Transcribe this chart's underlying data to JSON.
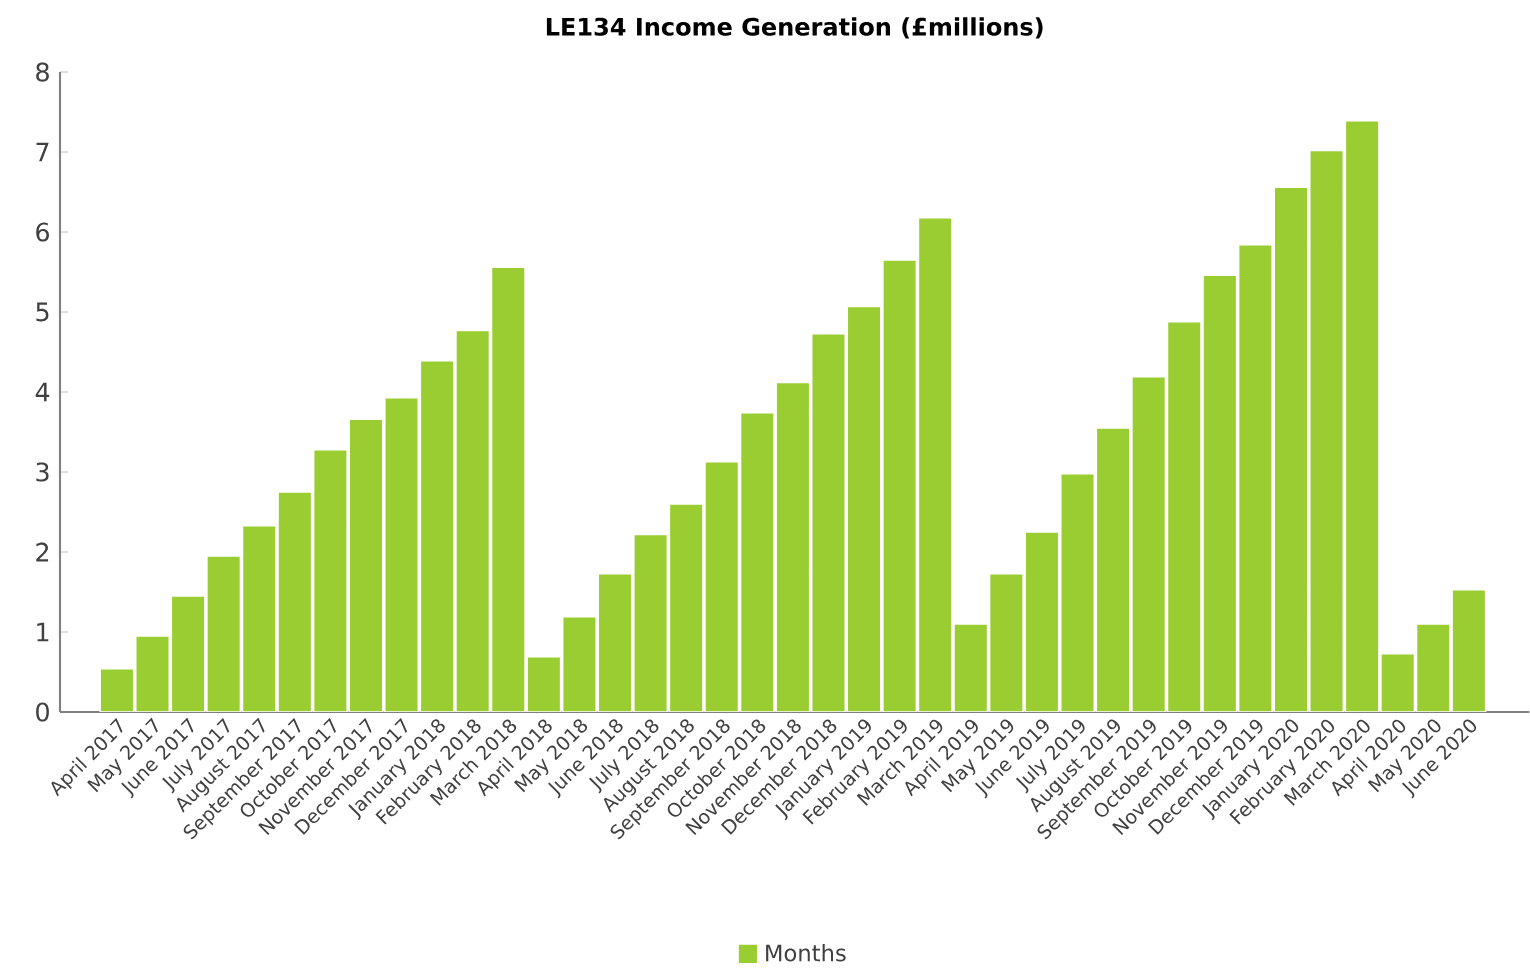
{
  "chart_data": {
    "type": "bar",
    "title": "LE134 Income Generation (£millions)",
    "categories": [
      "April 2017",
      "May 2017",
      "June 2017",
      "July 2017",
      "August 2017",
      "September 2017",
      "October 2017",
      "November 2017",
      "December 2017",
      "January 2018",
      "February 2018",
      "March 2018",
      "April 2018",
      "May 2018",
      "June 2018",
      "July 2018",
      "August 2018",
      "September 2018",
      "October 2018",
      "November 2018",
      "December 2018",
      "January 2019",
      "February 2019",
      "March 2019",
      "April 2019",
      "May 2019",
      "June 2019",
      "July 2019",
      "August 2019",
      "September 2019",
      "October 2019",
      "November 2019",
      "December 2019",
      "January 2020",
      "February 2020",
      "March 2020",
      "April 2020",
      "May 2020",
      "June 2020"
    ],
    "series": [
      {
        "name": "Months",
        "color": "#9acd32",
        "values": [
          0.54,
          0.95,
          1.45,
          1.95,
          2.33,
          2.75,
          3.28,
          3.66,
          3.93,
          4.39,
          4.77,
          5.56,
          0.69,
          1.19,
          1.73,
          2.22,
          2.6,
          3.13,
          3.74,
          4.12,
          4.73,
          5.07,
          5.65,
          6.18,
          1.1,
          1.73,
          2.25,
          2.98,
          3.55,
          4.19,
          4.88,
          5.46,
          5.84,
          6.56,
          7.02,
          7.39,
          0.73,
          1.1,
          1.53
        ]
      }
    ],
    "ylim": [
      0,
      8
    ],
    "yticks": [
      0,
      1,
      2,
      3,
      4,
      5,
      6,
      7,
      8
    ],
    "legend": "bottom"
  }
}
